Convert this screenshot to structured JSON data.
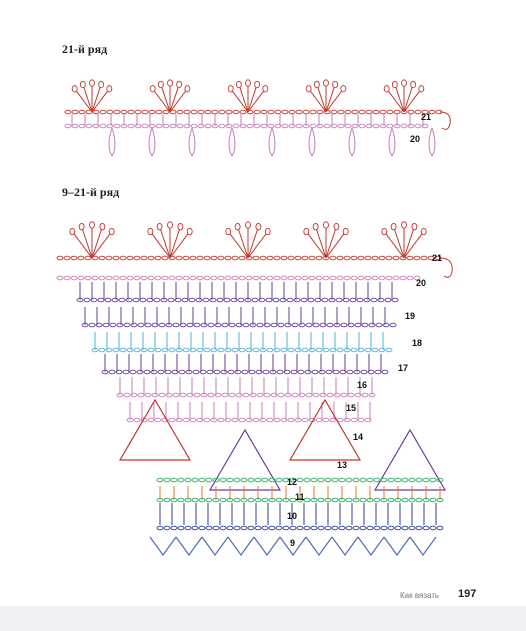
{
  "sections": [
    {
      "title": "21-й ряд",
      "row_labels": [
        "21",
        "20"
      ]
    },
    {
      "title": "9–21-й ряд",
      "row_labels": [
        "21",
        "20",
        "19",
        "18",
        "17",
        "16",
        "15",
        "14",
        "13",
        "12",
        "11",
        "10",
        "9"
      ]
    }
  ],
  "footer": {
    "section": "Как вязать",
    "page": "197"
  }
}
